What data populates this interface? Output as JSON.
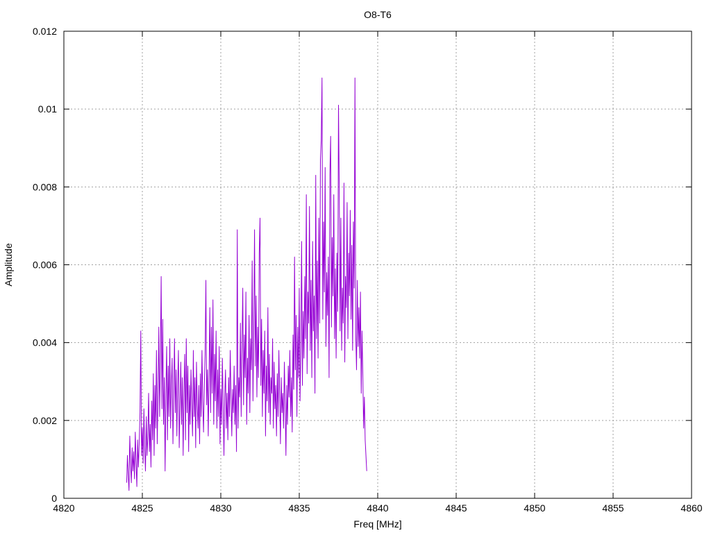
{
  "chart_data": {
    "type": "line",
    "title": "O8-T6",
    "xlabel": "Freq [MHz]",
    "ylabel": "Amplitude",
    "xlim": [
      4820,
      4860
    ],
    "ylim": [
      0,
      0.012
    ],
    "x_ticks": [
      4820,
      4825,
      4830,
      4835,
      4840,
      4845,
      4850,
      4855,
      4860
    ],
    "y_ticks": [
      0,
      0.002,
      0.004,
      0.006,
      0.008,
      0.01,
      0.012
    ],
    "x_tick_labels": [
      "4820",
      "4825",
      "4830",
      "4835",
      "4840",
      "4845",
      "4850",
      "4855",
      "4860"
    ],
    "y_tick_labels": [
      "0",
      "0.002",
      "0.004",
      "0.006",
      "0.008",
      "0.01",
      "0.012"
    ],
    "grid": true,
    "legend": "none",
    "series": [
      {
        "color": "#9400d3",
        "x_start": 4824.0,
        "x_step": 0.05,
        "values": [
          0.0004,
          0.0011,
          0.0006,
          0.0002,
          0.0016,
          0.0009,
          0.0004,
          0.0013,
          0.0007,
          0.0012,
          0.0005,
          0.0017,
          0.0009,
          0.0003,
          0.0015,
          0.0008,
          0.0014,
          0.0022,
          0.0043,
          0.0011,
          0.0018,
          0.0009,
          0.0023,
          0.0013,
          0.0007,
          0.0021,
          0.0011,
          0.0016,
          0.0027,
          0.0012,
          0.0019,
          0.0008,
          0.0025,
          0.0015,
          0.0032,
          0.0011,
          0.0029,
          0.0018,
          0.0038,
          0.0014,
          0.0027,
          0.0044,
          0.0021,
          0.0035,
          0.0057,
          0.0023,
          0.0046,
          0.0019,
          0.0031,
          0.0007,
          0.0027,
          0.0039,
          0.0015,
          0.0034,
          0.0021,
          0.0041,
          0.0018,
          0.0029,
          0.0036,
          0.0014,
          0.0027,
          0.0041,
          0.0022,
          0.0033,
          0.0016,
          0.0029,
          0.0038,
          0.0013,
          0.0024,
          0.0035,
          0.0019,
          0.0031,
          0.0011,
          0.0027,
          0.0037,
          0.0015,
          0.0041,
          0.0022,
          0.0034,
          0.0012,
          0.0029,
          0.0019,
          0.0033,
          0.0024,
          0.0016,
          0.0038,
          0.0021,
          0.0031,
          0.0013,
          0.0035,
          0.0024,
          0.0018,
          0.0029,
          0.0014,
          0.0032,
          0.0021,
          0.0038,
          0.0025,
          0.0017,
          0.0029,
          0.0037,
          0.0056,
          0.0024,
          0.0033,
          0.0016,
          0.0031,
          0.0049,
          0.0022,
          0.0044,
          0.0027,
          0.0051,
          0.0019,
          0.0037,
          0.0025,
          0.0043,
          0.0018,
          0.0033,
          0.0021,
          0.0039,
          0.0014,
          0.0028,
          0.0019,
          0.0036,
          0.0024,
          0.0011,
          0.0026,
          0.0033,
          0.0018,
          0.0027,
          0.0015,
          0.0031,
          0.0021,
          0.0038,
          0.0026,
          0.0016,
          0.0028,
          0.0022,
          0.0034,
          0.0019,
          0.0029,
          0.0012,
          0.0069,
          0.0018,
          0.0031,
          0.0026,
          0.0045,
          0.0021,
          0.0039,
          0.0054,
          0.0024,
          0.0042,
          0.0031,
          0.0053,
          0.0019,
          0.0036,
          0.0027,
          0.0047,
          0.0022,
          0.0041,
          0.0033,
          0.0061,
          0.0025,
          0.0043,
          0.0069,
          0.0034,
          0.0052,
          0.0026,
          0.0044,
          0.0031,
          0.0063,
          0.0072,
          0.0029,
          0.0046,
          0.0021,
          0.0038,
          0.0027,
          0.0043,
          0.0016,
          0.0034,
          0.0025,
          0.0049,
          0.0022,
          0.0037,
          0.0019,
          0.0031,
          0.0027,
          0.0041,
          0.0018,
          0.0035,
          0.0023,
          0.0029,
          0.0016,
          0.0032,
          0.0021,
          0.0038,
          0.0026,
          0.0014,
          0.0031,
          0.0022,
          0.0027,
          0.0018,
          0.0035,
          0.0024,
          0.0011,
          0.0029,
          0.0019,
          0.0034,
          0.0026,
          0.0038,
          0.0021,
          0.0031,
          0.0017,
          0.0042,
          0.0028,
          0.0062,
          0.0033,
          0.0047,
          0.0021,
          0.0044,
          0.0031,
          0.0054,
          0.0025,
          0.0039,
          0.0066,
          0.0029,
          0.0048,
          0.0036,
          0.0057,
          0.0041,
          0.0078,
          0.0032,
          0.0053,
          0.0045,
          0.0075,
          0.0038,
          0.0056,
          0.0031,
          0.0066,
          0.0043,
          0.0052,
          0.0027,
          0.0083,
          0.0041,
          0.0061,
          0.0036,
          0.0072,
          0.0045,
          0.0087,
          0.0092,
          0.0108,
          0.0046,
          0.0071,
          0.0053,
          0.0085,
          0.0039,
          0.0058,
          0.0047,
          0.0062,
          0.0031,
          0.0083,
          0.0093,
          0.0044,
          0.0067,
          0.0052,
          0.0078,
          0.0041,
          0.0059,
          0.0036,
          0.0063,
          0.0048,
          0.0101,
          0.0079,
          0.0043,
          0.0072,
          0.0038,
          0.0054,
          0.0045,
          0.0081,
          0.0035,
          0.0057,
          0.0049,
          0.0076,
          0.0041,
          0.0063,
          0.0052,
          0.0074,
          0.0046,
          0.0065,
          0.0038,
          0.0071,
          0.0054,
          0.0108,
          0.0042,
          0.0033,
          0.0056,
          0.0039,
          0.0049,
          0.0036,
          0.0053,
          0.0027,
          0.0043,
          0.0032,
          0.0018,
          0.0026,
          0.0015,
          0.0011,
          0.0007
        ]
      }
    ]
  }
}
